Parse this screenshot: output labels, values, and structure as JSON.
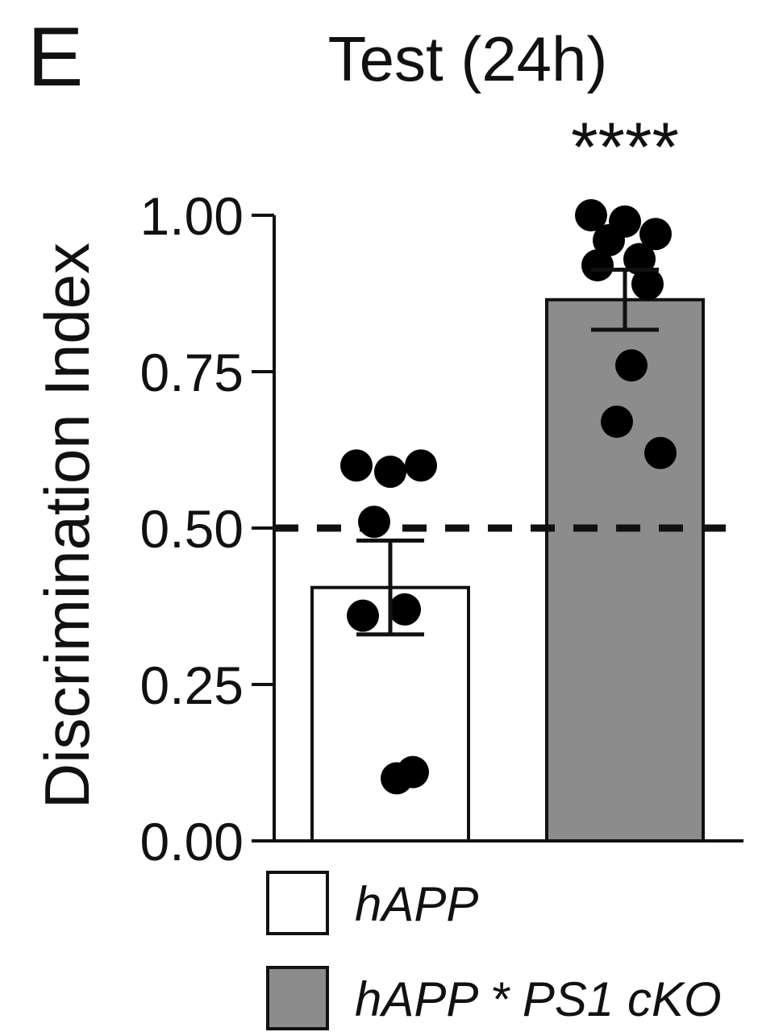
{
  "panel_letter": "E",
  "chart_data": {
    "type": "bar",
    "title": "Test (24h)",
    "ylabel": "Discrimination Index",
    "xlabel": "",
    "ylim": [
      0,
      1
    ],
    "yticks": [
      "0.00",
      "0.25",
      "0.50",
      "0.75",
      "1.00"
    ],
    "reference_line": 0.5,
    "categories": [
      "hAPP",
      "hAPP * PS1 cKO"
    ],
    "values": [
      0.405,
      0.865
    ],
    "sem": [
      0.075,
      0.048
    ],
    "colors": [
      "#ffffff",
      "#8c8c8c"
    ],
    "points": [
      [
        0.6,
        0.59,
        0.6,
        0.51,
        0.37,
        0.36,
        0.11,
        0.1
      ],
      [
        1.0,
        0.99,
        0.97,
        0.96,
        0.93,
        0.92,
        0.89,
        0.76,
        0.67,
        0.62
      ]
    ],
    "significance": [
      "",
      "****"
    ],
    "legend": {
      "placement": "bottom",
      "items": [
        "hAPP",
        "hAPP * PS1 cKO"
      ]
    }
  }
}
